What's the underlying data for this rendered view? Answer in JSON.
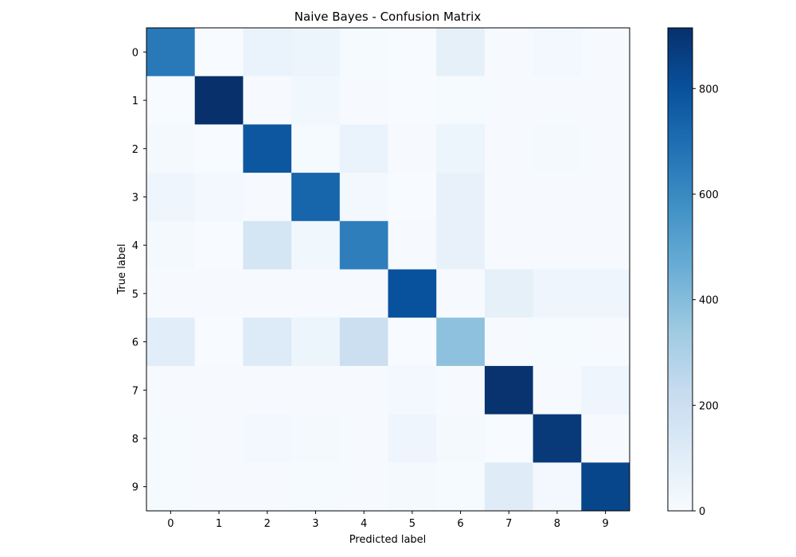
{
  "chart_data": {
    "type": "heatmap",
    "title": "Naive Bayes - Confusion Matrix",
    "xlabel": "Predicted label",
    "ylabel": "True label",
    "x_categories": [
      "0",
      "1",
      "2",
      "3",
      "4",
      "5",
      "6",
      "7",
      "8",
      "9"
    ],
    "y_categories": [
      "0",
      "1",
      "2",
      "3",
      "4",
      "5",
      "6",
      "7",
      "8",
      "9"
    ],
    "matrix": [
      [
        660,
        0,
        60,
        50,
        10,
        0,
        80,
        5,
        20,
        5
      ],
      [
        0,
        915,
        5,
        30,
        5,
        0,
        10,
        5,
        5,
        5
      ],
      [
        15,
        0,
        780,
        10,
        60,
        5,
        50,
        5,
        15,
        5
      ],
      [
        40,
        20,
        5,
        730,
        20,
        0,
        70,
        5,
        5,
        5
      ],
      [
        15,
        0,
        160,
        30,
        640,
        5,
        70,
        5,
        5,
        5
      ],
      [
        5,
        5,
        5,
        5,
        5,
        800,
        5,
        80,
        40,
        40
      ],
      [
        100,
        0,
        120,
        50,
        200,
        0,
        380,
        5,
        10,
        5
      ],
      [
        5,
        5,
        5,
        5,
        5,
        20,
        5,
        905,
        5,
        40
      ],
      [
        10,
        5,
        20,
        15,
        5,
        40,
        15,
        0,
        880,
        5
      ],
      [
        10,
        5,
        5,
        10,
        5,
        15,
        10,
        110,
        20,
        840
      ]
    ],
    "vmin": 0,
    "vmax": 915,
    "colormap": "Blues",
    "colorbar": {
      "ticks": [
        0,
        200,
        400,
        600,
        800
      ],
      "tick_labels": [
        "0",
        "200",
        "400",
        "600",
        "800"
      ]
    },
    "grid": false
  }
}
